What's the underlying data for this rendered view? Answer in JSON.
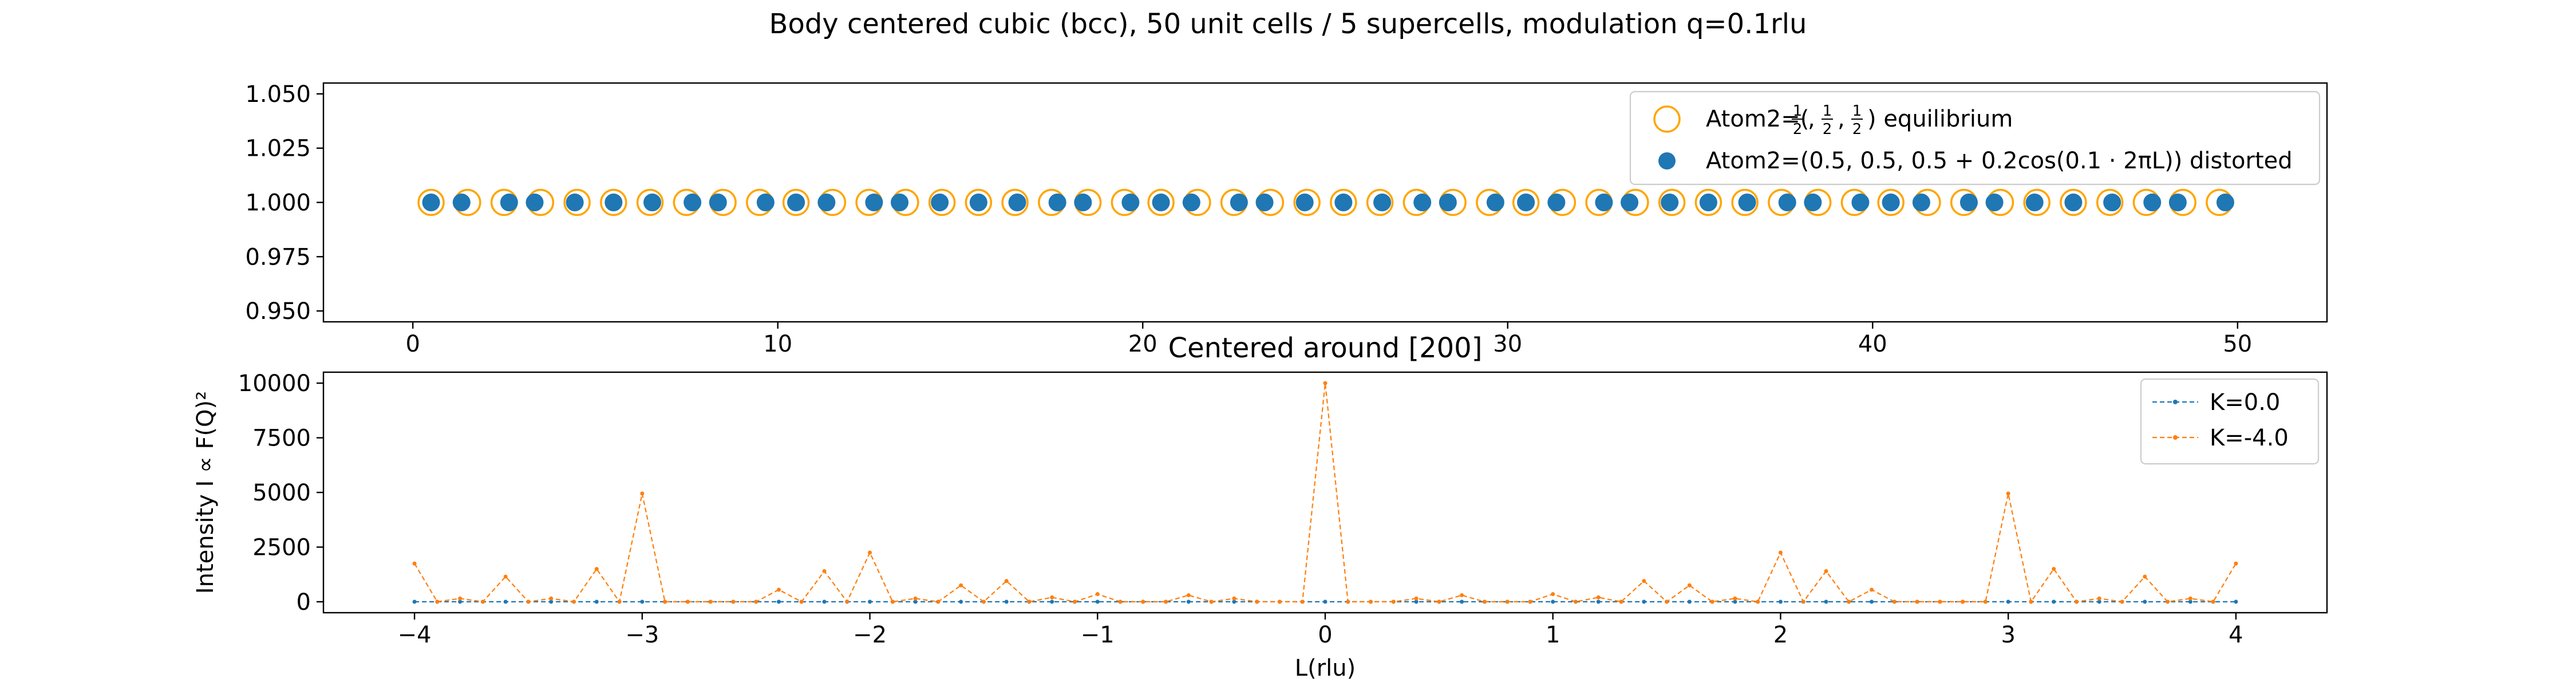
{
  "figure": {
    "suptitle": "Body centered cubic (bcc), 50 unit cells / 5 supercells, modulation q=0.1rlu"
  },
  "colors": {
    "equilibrium_edge": "#ffa500",
    "distorted_fill": "#1f77b4",
    "k0_line": "#1f77b4",
    "k4_line": "#ff7f0e",
    "frame": "#000000",
    "legend_edge": "#cccccc"
  },
  "chart_data": [
    {
      "type": "scatter",
      "title": "",
      "xlabel": "",
      "ylabel": "",
      "xlim": [
        -2.45,
        52.45
      ],
      "ylim": [
        0.945,
        1.055
      ],
      "xticks": [
        0,
        10,
        20,
        30,
        40,
        50
      ],
      "yticks": [
        0.95,
        0.975,
        1.0,
        1.025,
        1.05
      ],
      "xtick_labels": [
        "0",
        "10",
        "20",
        "30",
        "40",
        "50"
      ],
      "ytick_labels": [
        "0.950",
        "0.975",
        "1.000",
        "1.025",
        "1.050"
      ],
      "legend_position": "upper right",
      "series": [
        {
          "name": "Atom2=(½, ½, ½) equilibrium",
          "legend_main": "Atom2=(",
          "legend_tail": ") equilibrium",
          "marker": "open-circle",
          "x": [
            0.5,
            1.5,
            2.5,
            3.5,
            4.5,
            5.5,
            6.5,
            7.5,
            8.5,
            9.5,
            10.5,
            11.5,
            12.5,
            13.5,
            14.5,
            15.5,
            16.5,
            17.5,
            18.5,
            19.5,
            20.5,
            21.5,
            22.5,
            23.5,
            24.5,
            25.5,
            26.5,
            27.5,
            28.5,
            29.5,
            30.5,
            31.5,
            32.5,
            33.5,
            34.5,
            35.5,
            36.5,
            37.5,
            38.5,
            39.5,
            40.5,
            41.5,
            42.5,
            43.5,
            44.5,
            45.5,
            46.5,
            47.5,
            48.5,
            49.5
          ],
          "y": [
            1,
            1,
            1,
            1,
            1,
            1,
            1,
            1,
            1,
            1,
            1,
            1,
            1,
            1,
            1,
            1,
            1,
            1,
            1,
            1,
            1,
            1,
            1,
            1,
            1,
            1,
            1,
            1,
            1,
            1,
            1,
            1,
            1,
            1,
            1,
            1,
            1,
            1,
            1,
            1,
            1,
            1,
            1,
            1,
            1,
            1,
            1,
            1,
            1,
            1
          ]
        },
        {
          "name": "Atom2=(0.5, 0.5, 0.5 + 0.2cos(0.1 · 2πL)) distorted",
          "marker": "filled-circle",
          "x": [
            0.5,
            1.335,
            2.638,
            3.338,
            4.438,
            5.5,
            6.562,
            7.662,
            8.362,
            9.665,
            10.5,
            11.335,
            12.638,
            13.338,
            14.438,
            15.5,
            16.562,
            17.662,
            18.362,
            19.665,
            20.5,
            21.335,
            22.638,
            23.338,
            24.438,
            25.5,
            26.562,
            27.662,
            28.362,
            29.665,
            30.5,
            31.335,
            32.638,
            33.338,
            34.438,
            35.5,
            36.562,
            37.662,
            38.362,
            39.665,
            40.5,
            41.335,
            42.638,
            43.338,
            44.438,
            45.5,
            46.562,
            47.662,
            48.362,
            49.665
          ],
          "y": [
            1,
            1,
            1,
            1,
            1,
            1,
            1,
            1,
            1,
            1,
            1,
            1,
            1,
            1,
            1,
            1,
            1,
            1,
            1,
            1,
            1,
            1,
            1,
            1,
            1,
            1,
            1,
            1,
            1,
            1,
            1,
            1,
            1,
            1,
            1,
            1,
            1,
            1,
            1,
            1,
            1,
            1,
            1,
            1,
            1,
            1,
            1,
            1,
            1,
            1
          ]
        }
      ]
    },
    {
      "type": "line",
      "title": "Centered around [200]",
      "xlabel": "L(rlu)",
      "ylabel": "Intensity I ∝ F(Q)²",
      "xlim": [
        -4.4,
        4.4
      ],
      "ylim": [
        -500,
        10500
      ],
      "xticks": [
        -4,
        -3,
        -2,
        -1,
        0,
        1,
        2,
        3,
        4
      ],
      "yticks": [
        0,
        2500,
        5000,
        7500,
        10000
      ],
      "xtick_labels": [
        "−4",
        "−3",
        "−2",
        "−1",
        "0",
        "1",
        "2",
        "3",
        "4"
      ],
      "ytick_labels": [
        "0",
        "2500",
        "5000",
        "7500",
        "10000"
      ],
      "legend_position": "upper right",
      "x": [
        -4.0,
        -3.9,
        -3.8,
        -3.7,
        -3.6,
        -3.5,
        -3.4,
        -3.3,
        -3.2,
        -3.1,
        -3.0,
        -2.9,
        -2.8,
        -2.7,
        -2.6,
        -2.5,
        -2.4,
        -2.3,
        -2.2,
        -2.1,
        -2.0,
        -1.9,
        -1.8,
        -1.7,
        -1.6,
        -1.5,
        -1.4,
        -1.3,
        -1.2,
        -1.1,
        -1.0,
        -0.9,
        -0.8,
        -0.7,
        -0.6,
        -0.5,
        -0.4,
        -0.3,
        -0.2,
        -0.1,
        0.0,
        0.1,
        0.2,
        0.3,
        0.4,
        0.5,
        0.6,
        0.7,
        0.8,
        0.9,
        1.0,
        1.1,
        1.2,
        1.3,
        1.4,
        1.5,
        1.6,
        1.7,
        1.8,
        1.9,
        2.0,
        2.1,
        2.2,
        2.3,
        2.4,
        2.5,
        2.6,
        2.7,
        2.8,
        2.9,
        3.0,
        3.1,
        3.2,
        3.3,
        3.4,
        3.5,
        3.6,
        3.7,
        3.8,
        3.9,
        4.0
      ],
      "series": [
        {
          "name": "K=0.0",
          "values": [
            0,
            0,
            0,
            0,
            0,
            0,
            0,
            0,
            0,
            0,
            0,
            0,
            0,
            0,
            0,
            0,
            0,
            0,
            0,
            0,
            0,
            0,
            0,
            0,
            0,
            0,
            0,
            0,
            0,
            0,
            0,
            0,
            0,
            0,
            0,
            0,
            0,
            0,
            0,
            0,
            0,
            0,
            0,
            0,
            0,
            0,
            0,
            0,
            0,
            0,
            0,
            0,
            0,
            0,
            0,
            0,
            0,
            0,
            0,
            0,
            0,
            0,
            0,
            0,
            0,
            0,
            0,
            0,
            0,
            0,
            0,
            0,
            0,
            0,
            0,
            0,
            0,
            0,
            0,
            0,
            0
          ]
        },
        {
          "name": "K=-4.0",
          "values": [
            1750,
            0,
            150,
            0,
            1150,
            0,
            150,
            0,
            1500,
            0,
            4950,
            0,
            0,
            0,
            0,
            0,
            550,
            0,
            1400,
            0,
            2250,
            0,
            150,
            0,
            750,
            0,
            950,
            0,
            200,
            0,
            350,
            0,
            0,
            0,
            300,
            0,
            150,
            0,
            0,
            0,
            10000,
            0,
            0,
            0,
            150,
            0,
            300,
            0,
            0,
            0,
            350,
            0,
            200,
            0,
            950,
            0,
            750,
            0,
            150,
            0,
            2250,
            0,
            1400,
            0,
            550,
            0,
            0,
            0,
            0,
            0,
            4950,
            0,
            1500,
            0,
            150,
            0,
            1150,
            0,
            150,
            0,
            1750
          ]
        }
      ]
    }
  ]
}
